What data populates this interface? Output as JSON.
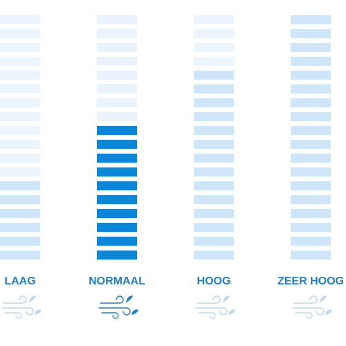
{
  "segments": 18,
  "columns": [
    {
      "label": "LAAG",
      "level": 6,
      "selected": false
    },
    {
      "label": "NORMAAL",
      "level": 10,
      "selected": true
    },
    {
      "label": "HOOG",
      "level": 14,
      "selected": false
    },
    {
      "label": "ZEER HOOG",
      "level": 18,
      "selected": false
    }
  ]
}
